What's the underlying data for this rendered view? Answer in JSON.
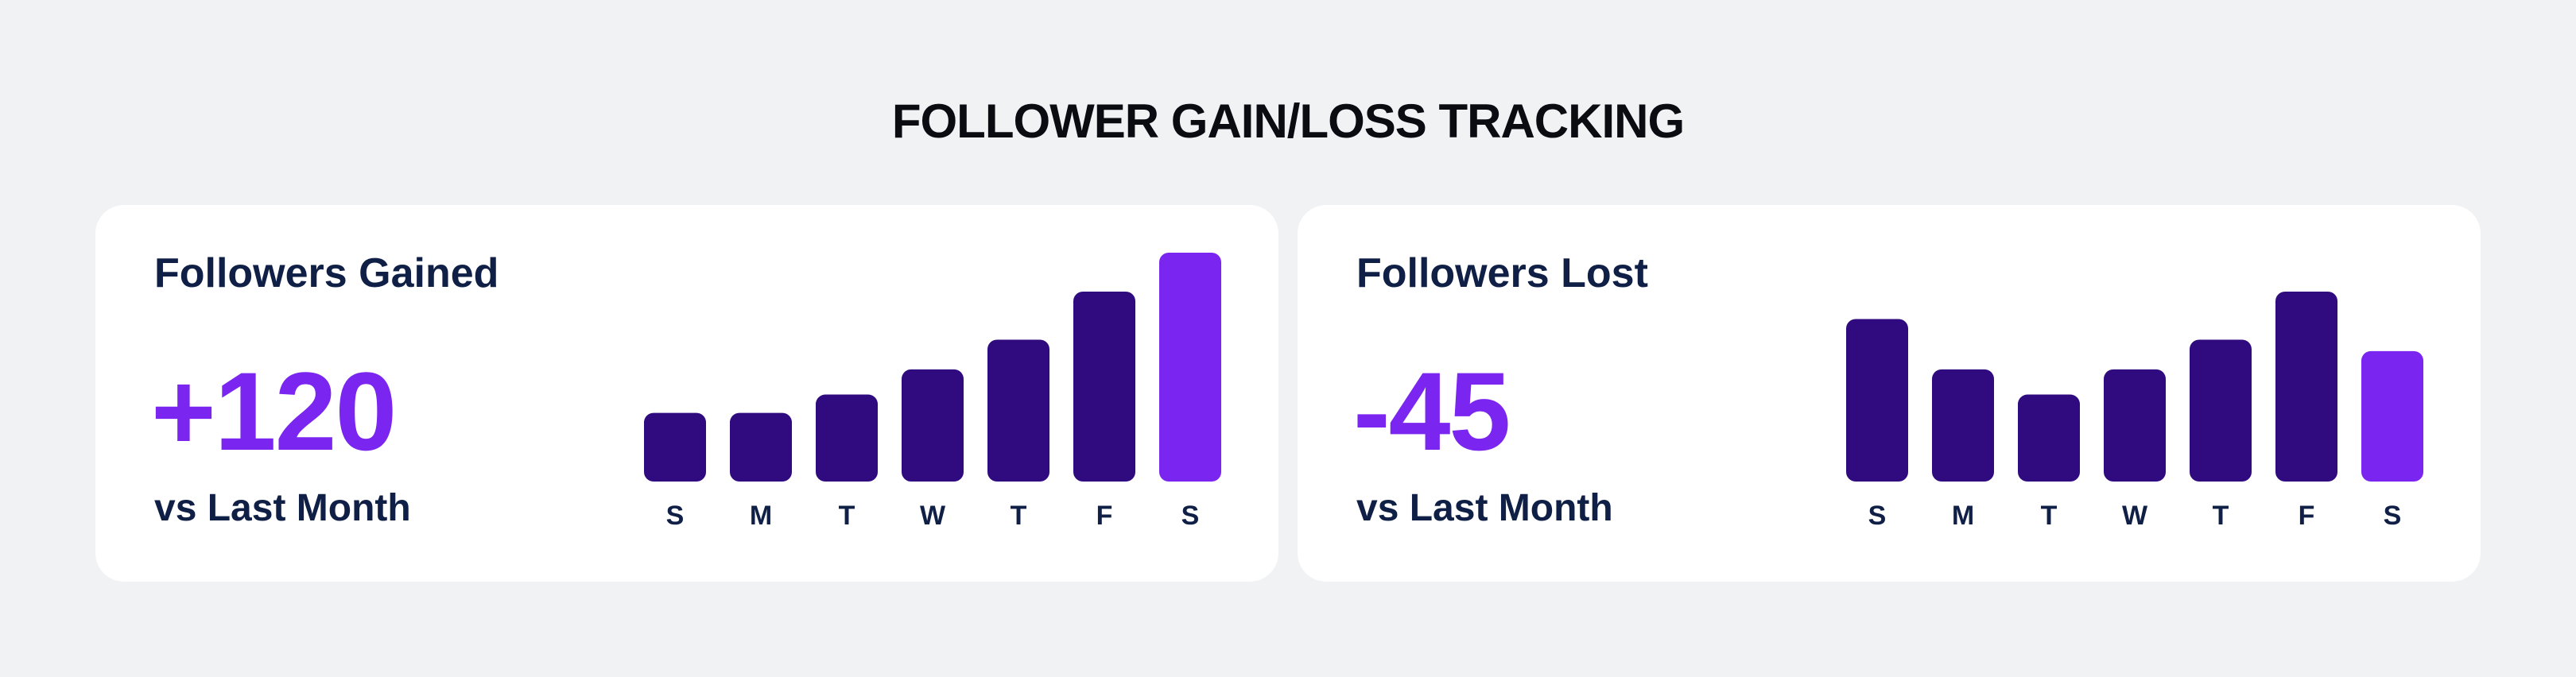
{
  "page_title": "FOLLOWER GAIN/LOSS TRACKING",
  "colors": {
    "bar": "#300b80",
    "highlight": "#7b25f0",
    "heading": "#0f1f45"
  },
  "cards": [
    {
      "title": "Followers Gained",
      "value": "+120",
      "sub": "vs Last Month"
    },
    {
      "title": "Followers Lost",
      "value": "-45",
      "sub": "vs Last Month"
    }
  ],
  "chart_data": [
    {
      "type": "bar",
      "categories": [
        "S",
        "M",
        "T",
        "W",
        "T",
        "F",
        "S"
      ],
      "values": [
        30,
        30,
        38,
        49,
        62,
        83,
        100
      ],
      "highlight_index": 6
    },
    {
      "type": "bar",
      "categories": [
        "S",
        "M",
        "T",
        "W",
        "T",
        "F",
        "S"
      ],
      "values": [
        71,
        49,
        38,
        49,
        62,
        83,
        57
      ],
      "highlight_index": 6
    }
  ]
}
